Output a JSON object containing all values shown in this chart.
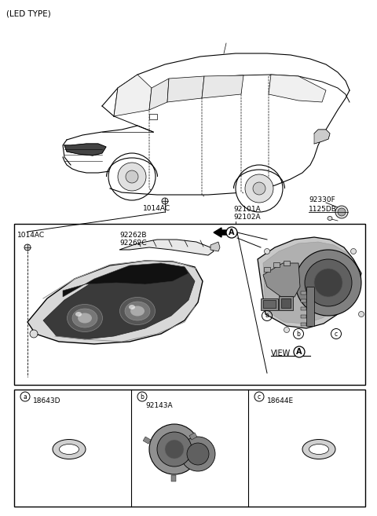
{
  "background_color": "#ffffff",
  "text_color": "#000000",
  "labels": {
    "led_type": "(LED TYPE)",
    "label_1014AC_top": "1014AC",
    "label_92101A": "92101A",
    "label_92102A": "92102A",
    "label_1125DB": "1125DB",
    "label_92330F": "92330F",
    "label_1014AC_left": "1014AC",
    "label_92262B": "92262B",
    "label_92262C": "92262C",
    "label_view": "VIEW",
    "label_18643D": "18643D",
    "label_92143A": "92143A",
    "label_18644E": "18644E"
  }
}
